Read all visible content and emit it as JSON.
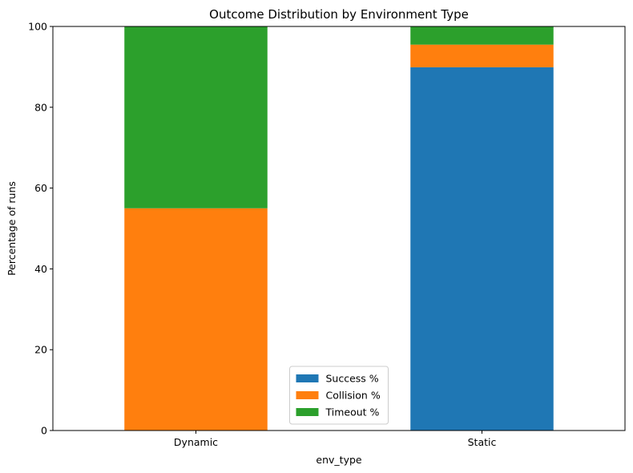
{
  "chart_data": {
    "type": "bar",
    "stacked": true,
    "title": "Outcome Distribution by Environment Type",
    "xlabel": "env_type",
    "ylabel": "Percentage of runs",
    "categories": [
      "Dynamic",
      "Static"
    ],
    "ylim": [
      0,
      100
    ],
    "yticks": [
      0,
      20,
      40,
      60,
      80,
      100
    ],
    "series": [
      {
        "name": "Success %",
        "color": "#1f77b4",
        "values": [
          0,
          89.9
        ]
      },
      {
        "name": "Collision %",
        "color": "#ff7f0e",
        "values": [
          55,
          5.6
        ]
      },
      {
        "name": "Timeout %",
        "color": "#2ca02c",
        "values": [
          45,
          4.5
        ]
      }
    ],
    "grid": false,
    "legend_position": "lower center"
  }
}
